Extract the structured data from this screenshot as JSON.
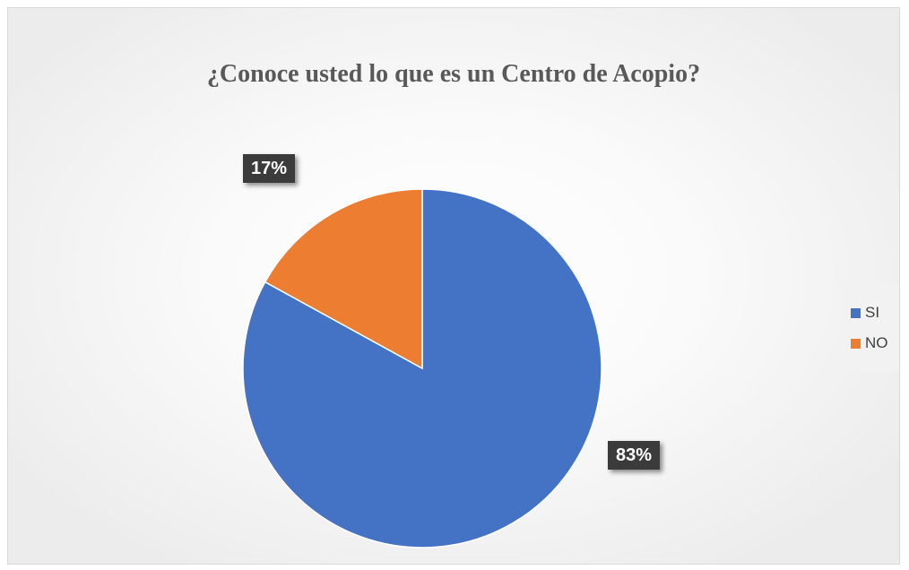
{
  "chart_data": {
    "type": "pie",
    "title": "¿Conoce usted lo que es un Centro de Acopio?",
    "categories": [
      "SI",
      "NO"
    ],
    "values": [
      83,
      17
    ],
    "data_labels": [
      "83%",
      "17%"
    ],
    "colors": [
      "#4472C4",
      "#ED7D31"
    ],
    "legend_position": "right"
  }
}
